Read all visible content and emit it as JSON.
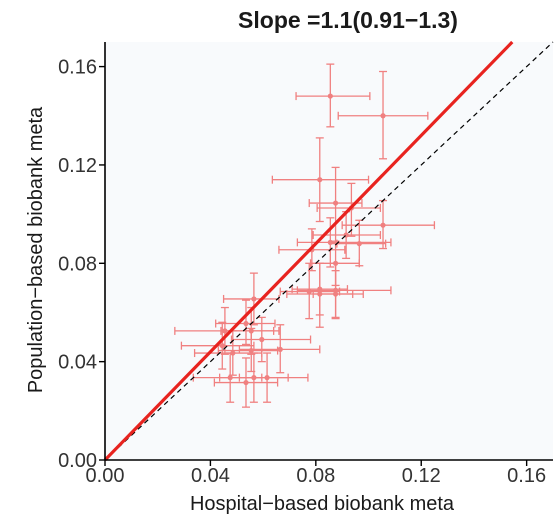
{
  "chart_data": {
    "type": "scatter",
    "title": "Slope =1.1(0.91−1.3)",
    "xlabel": "Hospital−based biobank meta",
    "ylabel": "Population−based biobank meta",
    "xlim": [
      0,
      0.17
    ],
    "ylim": [
      0,
      0.17
    ],
    "x_ticks": [
      "0.00",
      "0.04",
      "0.08",
      "0.12",
      "0.16"
    ],
    "y_ticks": [
      "0.00",
      "0.04",
      "0.08",
      "0.12",
      "0.16"
    ],
    "grid": false,
    "legend": "none",
    "colors": {
      "points": "#f08080",
      "fit_line": "#e8231f",
      "identity_line": "#000000",
      "panel_background": "#f8fafc"
    },
    "fit_line": {
      "slope": 1.1,
      "intercept": 0
    },
    "identity_line": {
      "slope": 1,
      "intercept": 0
    },
    "points": [
      {
        "x": 0.0855,
        "y": 0.148,
        "xerr_low": 0.0725,
        "xerr_high": 0.1005,
        "yerr_low": 0.1355,
        "yerr_high": 0.161
      },
      {
        "x": 0.1055,
        "y": 0.14,
        "xerr_low": 0.0885,
        "xerr_high": 0.1225,
        "yerr_low": 0.1225,
        "yerr_high": 0.158
      },
      {
        "x": 0.0815,
        "y": 0.114,
        "xerr_low": 0.0635,
        "xerr_high": 0.1,
        "yerr_low": 0.097,
        "yerr_high": 0.131
      },
      {
        "x": 0.0875,
        "y": 0.1045,
        "xerr_low": 0.0775,
        "xerr_high": 0.0975,
        "yerr_low": 0.088,
        "yerr_high": 0.119
      },
      {
        "x": 0.0935,
        "y": 0.1025,
        "xerr_low": 0.0805,
        "xerr_high": 0.1045,
        "yerr_low": 0.091,
        "yerr_high": 0.1125
      },
      {
        "x": 0.1055,
        "y": 0.0955,
        "xerr_low": 0.09,
        "xerr_high": 0.125,
        "yerr_low": 0.086,
        "yerr_high": 0.1055
      },
      {
        "x": 0.0915,
        "y": 0.0915,
        "xerr_low": 0.079,
        "xerr_high": 0.1045,
        "yerr_low": 0.082,
        "yerr_high": 0.101
      },
      {
        "x": 0.0855,
        "y": 0.0885,
        "xerr_low": 0.073,
        "xerr_high": 0.1085,
        "yerr_low": 0.0785,
        "yerr_high": 0.0985
      },
      {
        "x": 0.0965,
        "y": 0.088,
        "xerr_low": 0.088,
        "xerr_high": 0.1065,
        "yerr_low": 0.079,
        "yerr_high": 0.0975
      },
      {
        "x": 0.0785,
        "y": 0.0855,
        "xerr_low": 0.066,
        "xerr_high": 0.091,
        "yerr_low": 0.077,
        "yerr_high": 0.094
      },
      {
        "x": 0.0875,
        "y": 0.08,
        "xerr_low": 0.078,
        "xerr_high": 0.0965,
        "yerr_low": 0.071,
        "yerr_high": 0.089
      },
      {
        "x": 0.0815,
        "y": 0.0695,
        "xerr_low": 0.071,
        "xerr_high": 0.092,
        "yerr_low": 0.059,
        "yerr_high": 0.08
      },
      {
        "x": 0.0875,
        "y": 0.0675,
        "xerr_low": 0.079,
        "xerr_high": 0.098,
        "yerr_low": 0.058,
        "yerr_high": 0.077
      },
      {
        "x": 0.0875,
        "y": 0.069,
        "xerr_low": 0.073,
        "xerr_high": 0.1085,
        "yerr_low": 0.0575,
        "yerr_high": 0.08
      },
      {
        "x": 0.0815,
        "y": 0.0675,
        "xerr_low": 0.069,
        "xerr_high": 0.094,
        "yerr_low": 0.054,
        "yerr_high": 0.08
      },
      {
        "x": 0.0775,
        "y": 0.0685,
        "xerr_low": 0.0665,
        "xerr_high": 0.089,
        "yerr_low": 0.0575,
        "yerr_high": 0.08
      },
      {
        "x": 0.0565,
        "y": 0.0655,
        "xerr_low": 0.045,
        "xerr_high": 0.066,
        "yerr_low": 0.055,
        "yerr_high": 0.076
      },
      {
        "x": 0.0535,
        "y": 0.0555,
        "xerr_low": 0.042,
        "xerr_high": 0.0645,
        "yerr_low": 0.047,
        "yerr_high": 0.065
      },
      {
        "x": 0.0455,
        "y": 0.0525,
        "xerr_low": 0.0265,
        "xerr_high": 0.064,
        "yerr_low": 0.043,
        "yerr_high": 0.062
      },
      {
        "x": 0.0555,
        "y": 0.0525,
        "xerr_low": 0.044,
        "xerr_high": 0.066,
        "yerr_low": 0.043,
        "yerr_high": 0.062
      },
      {
        "x": 0.0595,
        "y": 0.049,
        "xerr_low": 0.048,
        "xerr_high": 0.078,
        "yerr_low": 0.04,
        "yerr_high": 0.058
      },
      {
        "x": 0.0445,
        "y": 0.0465,
        "xerr_low": 0.029,
        "xerr_high": 0.0565,
        "yerr_low": 0.037,
        "yerr_high": 0.056
      },
      {
        "x": 0.0555,
        "y": 0.0445,
        "xerr_low": 0.043,
        "xerr_high": 0.0655,
        "yerr_low": 0.036,
        "yerr_high": 0.0535
      },
      {
        "x": 0.0485,
        "y": 0.0435,
        "xerr_low": 0.034,
        "xerr_high": 0.0595,
        "yerr_low": 0.0345,
        "yerr_high": 0.0525
      },
      {
        "x": 0.0665,
        "y": 0.045,
        "xerr_low": 0.051,
        "xerr_high": 0.0815,
        "yerr_low": 0.0355,
        "yerr_high": 0.055
      },
      {
        "x": 0.0475,
        "y": 0.0335,
        "xerr_low": 0.0335,
        "xerr_high": 0.0595,
        "yerr_low": 0.0235,
        "yerr_high": 0.0435
      },
      {
        "x": 0.0565,
        "y": 0.0335,
        "xerr_low": 0.0435,
        "xerr_high": 0.0695,
        "yerr_low": 0.0235,
        "yerr_high": 0.0435
      },
      {
        "x": 0.0615,
        "y": 0.0335,
        "xerr_low": 0.051,
        "xerr_high": 0.077,
        "yerr_low": 0.0235,
        "yerr_high": 0.0435
      },
      {
        "x": 0.0535,
        "y": 0.0315,
        "xerr_low": 0.0415,
        "xerr_high": 0.0655,
        "yerr_low": 0.0215,
        "yerr_high": 0.0415
      }
    ]
  }
}
